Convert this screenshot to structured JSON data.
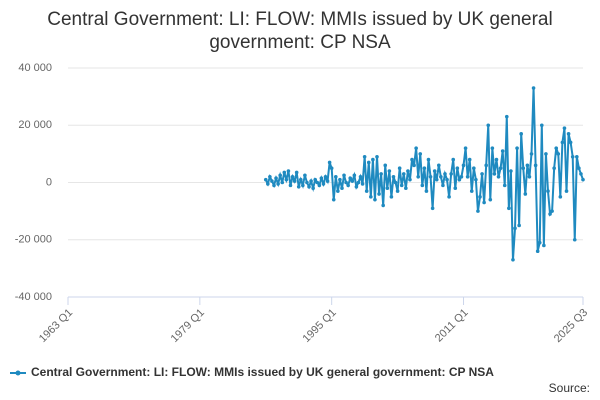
{
  "chart_data": {
    "type": "line",
    "title": "Central Government: LI: FLOW: MMIs issued by UK general government: CP NSA",
    "source": "Source:",
    "xlim": [
      1963,
      2025.5
    ],
    "xticks": [
      {
        "value": 1963,
        "label": "1963 Q1"
      },
      {
        "value": 1979,
        "label": "1979 Q1"
      },
      {
        "value": 1995,
        "label": "1995 Q1"
      },
      {
        "value": 2011,
        "label": "2011 Q1"
      },
      {
        "value": 2025.5,
        "label": "2025 Q3"
      }
    ],
    "ylim": [
      -40000,
      40000
    ],
    "yticks": [
      {
        "value": -40000,
        "label": "-40 000"
      },
      {
        "value": -20000,
        "label": "-20 000"
      },
      0,
      {
        "value": 20000,
        "label": "20 000"
      },
      {
        "value": 40000,
        "label": "40 000"
      }
    ],
    "grid": true,
    "series": [
      {
        "name": "Central Government: LI: FLOW: MMIs issued by UK general government: CP NSA",
        "color": "#1f8ac0",
        "x": [
          1987,
          1987.25,
          1987.5,
          1987.75,
          1988,
          1988.25,
          1988.5,
          1988.75,
          1989,
          1989.25,
          1989.5,
          1989.75,
          1990,
          1990.25,
          1990.5,
          1990.75,
          1991,
          1991.25,
          1991.5,
          1991.75,
          1992,
          1992.25,
          1992.5,
          1992.75,
          1993,
          1993.25,
          1993.5,
          1993.75,
          1994,
          1994.25,
          1994.5,
          1994.75,
          1995,
          1995.25,
          1995.5,
          1995.75,
          1996,
          1996.25,
          1996.5,
          1996.75,
          1997,
          1997.25,
          1997.5,
          1997.75,
          1998,
          1998.25,
          1998.5,
          1998.75,
          1999,
          1999.25,
          1999.5,
          1999.75,
          2000,
          2000.25,
          2000.5,
          2000.75,
          2001,
          2001.25,
          2001.5,
          2001.75,
          2002,
          2002.25,
          2002.5,
          2002.75,
          2003,
          2003.25,
          2003.5,
          2003.75,
          2004,
          2004.25,
          2004.5,
          2004.75,
          2005,
          2005.25,
          2005.5,
          2005.75,
          2006,
          2006.25,
          2006.5,
          2006.75,
          2007,
          2007.25,
          2007.5,
          2007.75,
          2008,
          2008.25,
          2008.5,
          2008.75,
          2009,
          2009.25,
          2009.5,
          2009.75,
          2010,
          2010.25,
          2010.5,
          2010.75,
          2011,
          2011.25,
          2011.5,
          2011.75,
          2012,
          2012.25,
          2012.5,
          2012.75,
          2013,
          2013.25,
          2013.5,
          2013.75,
          2014,
          2014.25,
          2014.5,
          2014.75,
          2015,
          2015.25,
          2015.5,
          2015.75,
          2016,
          2016.25,
          2016.5,
          2016.75,
          2017,
          2017.25,
          2017.5,
          2017.75,
          2018,
          2018.25,
          2018.5,
          2018.75,
          2019,
          2019.25,
          2019.5,
          2019.75,
          2020,
          2020.25,
          2020.5,
          2020.75,
          2021,
          2021.25,
          2021.5,
          2021.75,
          2022,
          2022.25,
          2022.5,
          2022.75,
          2023,
          2023.25,
          2023.5,
          2023.75,
          2024,
          2024.25,
          2024.5,
          2024.75,
          2025,
          2025.25,
          2025.5
        ],
        "values": [
          1000,
          -500,
          2000,
          500,
          -1000,
          1500,
          -500,
          2500,
          0,
          3500,
          1000,
          4000,
          -1000,
          2000,
          500,
          3500,
          -1500,
          1000,
          -1000,
          2500,
          0,
          -1500,
          500,
          -2000,
          1000,
          0,
          -1000,
          1500,
          -500,
          2000,
          500,
          7000,
          5000,
          -6000,
          2000,
          -3000,
          1000,
          -2000,
          2500,
          0,
          -1000,
          1500,
          500,
          2500,
          -1500,
          0,
          2000,
          -500,
          9000,
          -3000,
          7000,
          -5000,
          8000,
          -6000,
          9000,
          -4000,
          3000,
          -8000,
          6000,
          -2000,
          4000,
          -5000,
          2000,
          0,
          -3000,
          5000,
          -1000,
          3000,
          -2000,
          4000,
          1000,
          8000,
          6000,
          12000,
          2000,
          10000,
          -1000,
          5000,
          -3000,
          8000,
          2000,
          -9000,
          4000,
          1000,
          6000,
          2000,
          -1000,
          3000,
          1000,
          -5000,
          3000,
          8000,
          -2000,
          5000,
          1000,
          2000,
          6000,
          12000,
          2000,
          8000,
          -3000,
          5000,
          1000,
          -10000,
          -5000,
          3000,
          -7000,
          6000,
          20000,
          -6000,
          12000,
          3000,
          8000,
          2000,
          5000,
          11000,
          -1000,
          23000,
          -9000,
          4000,
          -27000,
          -16000,
          12000,
          -15000,
          17000,
          5000,
          -4000,
          6000,
          2000,
          10000,
          33000,
          6000,
          -24000,
          -21000,
          20000,
          -22000,
          10000,
          -3000,
          -11000,
          -10000,
          5000,
          12000,
          10000,
          -5000,
          14000,
          19000,
          -3000,
          17000,
          14000,
          9000,
          -20000,
          9000,
          5000,
          3000,
          1000
        ]
      }
    ]
  }
}
